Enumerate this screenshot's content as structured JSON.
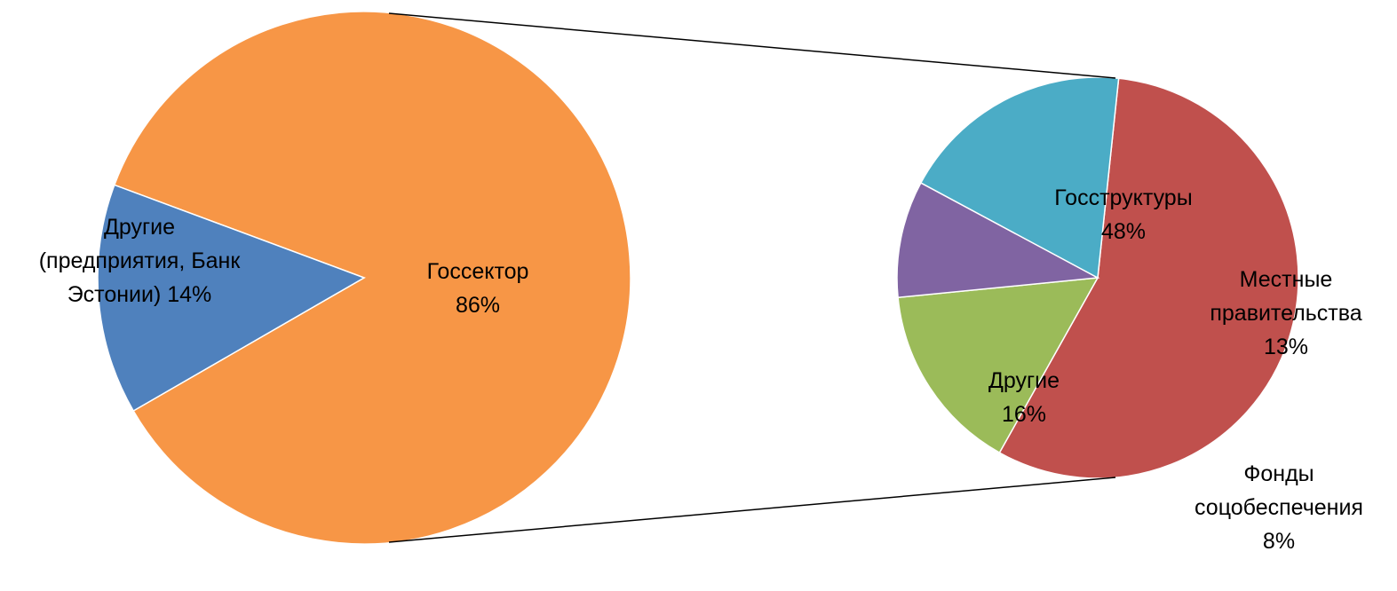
{
  "chart_data": {
    "type": "pie",
    "subtype": "pie-of-pie",
    "main_pie": {
      "slices": [
        {
          "label_lines": [
            "Госсектор",
            "86%"
          ],
          "value": 86,
          "color": "#F79646"
        },
        {
          "label_lines": [
            "Другие",
            "(предприятия, Банк",
            "Эстонии) 14%"
          ],
          "value": 14,
          "color": "#4F81BD"
        }
      ]
    },
    "secondary_pie": {
      "expands": "Госсектор",
      "slices": [
        {
          "label_lines": [
            "Госструктуры",
            "48%"
          ],
          "value": 48,
          "color": "#C0504D"
        },
        {
          "label_lines": [
            "Местные",
            "правительства",
            "13%"
          ],
          "value": 13,
          "color": "#9BBB59"
        },
        {
          "label_lines": [
            "Фонды",
            "соцобеспечения",
            "8%"
          ],
          "value": 8,
          "color": "#8064A2"
        },
        {
          "label_lines": [
            "Другие",
            "16%"
          ],
          "value": 16,
          "color": "#4BACC6"
        }
      ]
    },
    "legend": "none"
  }
}
